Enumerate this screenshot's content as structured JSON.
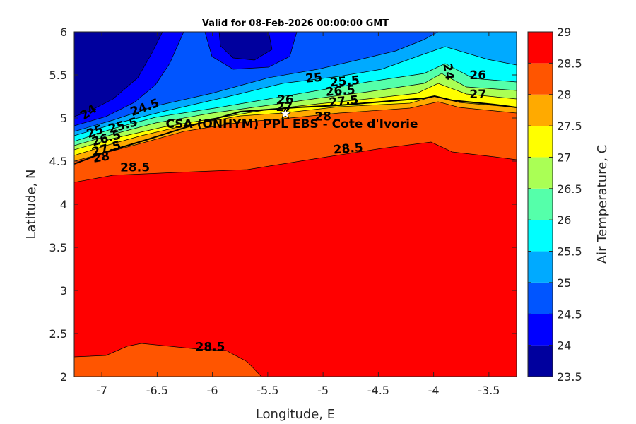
{
  "chart_data": {
    "type": "filled-contour",
    "title": "Valid for 08-Feb-2026 00:00:00 GMT",
    "xlabel": "Longitude, E",
    "ylabel": "Latitude, N",
    "xlim": [
      -7.25,
      -3.25
    ],
    "ylim": [
      2,
      6
    ],
    "x_ticks": [
      -7,
      -6.5,
      -6,
      -5.5,
      -5,
      -4.5,
      -4,
      -3.5
    ],
    "x_tick_labels": [
      "-7",
      "-6.5",
      "-6",
      "-5.5",
      "-5",
      "-4.5",
      "-4",
      "-3.5"
    ],
    "y_ticks": [
      2,
      2.5,
      3,
      3.5,
      4,
      4.5,
      5,
      5.5,
      6
    ],
    "y_tick_labels": [
      "2",
      "2.5",
      "3",
      "3.5",
      "4",
      "4.5",
      "5",
      "5.5",
      "6"
    ],
    "colorbar": {
      "label": "Air Temperature, C",
      "range": [
        23.5,
        29
      ],
      "ticks": [
        23.5,
        24,
        24.5,
        25,
        25.5,
        26,
        26.5,
        27,
        27.5,
        28,
        28.5,
        29
      ],
      "tick_labels": [
        "23.5",
        "24",
        "24.5",
        "25",
        "25.5",
        "26",
        "26.5",
        "27",
        "27.5",
        "28",
        "28.5",
        "29"
      ],
      "colors": [
        "#00009E",
        "#0000FF",
        "#0055FF",
        "#00AAFF",
        "#00FFFF",
        "#55FFAA",
        "#AAFF55",
        "#FFFF00",
        "#FFAA00",
        "#FF5500",
        "#FF0000",
        "#AA0000"
      ]
    },
    "site": {
      "name": "CSA (ONHYM) PPL EBS - Cote d'Ivorie",
      "lon": -5.34,
      "lat": 5.05
    },
    "contour_labels": [
      {
        "text": "24",
        "lon": -3.9,
        "lat": 5.53,
        "rot": 80
      },
      {
        "text": "24",
        "lon": -7.1,
        "lat": 5.03,
        "rot": -35
      },
      {
        "text": "24.5",
        "lon": -6.6,
        "lat": 5.08,
        "rot": -20
      },
      {
        "text": "25",
        "lon": -7.05,
        "lat": 4.8,
        "rot": -20
      },
      {
        "text": "25.5",
        "lon": -6.8,
        "lat": 4.87,
        "rot": -15
      },
      {
        "text": "26.5",
        "lon": -6.95,
        "lat": 4.72,
        "rot": -15
      },
      {
        "text": "27.5",
        "lon": -6.95,
        "lat": 4.6,
        "rot": -15
      },
      {
        "text": "28",
        "lon": -7.0,
        "lat": 4.5,
        "rot": -10
      },
      {
        "text": "28.5",
        "lon": -6.7,
        "lat": 4.38,
        "rot": 0
      },
      {
        "text": "25",
        "lon": -5.08,
        "lat": 5.42,
        "rot": -5
      },
      {
        "text": "25.5",
        "lon": -4.8,
        "lat": 5.38,
        "rot": -5
      },
      {
        "text": "26",
        "lon": -5.34,
        "lat": 5.17,
        "rot": 0
      },
      {
        "text": "26.5",
        "lon": -4.84,
        "lat": 5.27,
        "rot": -5
      },
      {
        "text": "27",
        "lon": -5.35,
        "lat": 5.08,
        "rot": 0
      },
      {
        "text": "27.5",
        "lon": -4.81,
        "lat": 5.15,
        "rot": -5
      },
      {
        "text": "28",
        "lon": -5.0,
        "lat": 4.97,
        "rot": 0
      },
      {
        "text": "26",
        "lon": -3.6,
        "lat": 5.45,
        "rot": 0
      },
      {
        "text": "27",
        "lon": -3.6,
        "lat": 5.23,
        "rot": 0
      },
      {
        "text": "28.5",
        "lon": -4.77,
        "lat": 4.6,
        "rot": -5
      },
      {
        "text": "28.5",
        "lon": -6.02,
        "lat": 2.3,
        "rot": 0
      }
    ]
  }
}
